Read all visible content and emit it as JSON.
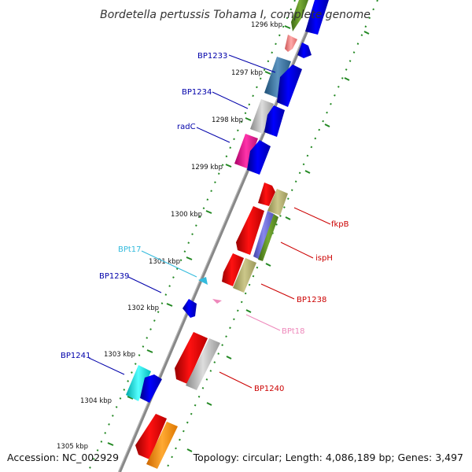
{
  "title": "Bordetella pertussis Tohama I, complete genome",
  "accession": "Accession: NC_002929",
  "summary": "Topology: circular; Length: 4,086,189 bp; Genes: 3,497",
  "ticks": [
    "1296 kbp",
    "1297 kbp",
    "1298 kbp",
    "1299 kbp",
    "1300 kbp",
    "1301 kbp",
    "1302 kbp",
    "1303 kbp",
    "1304 kbp",
    "1305 kbp"
  ],
  "labels": {
    "bp1233": "BP1233",
    "bp1234": "BP1234",
    "radc": "radC",
    "fkpb": "fkpB",
    "isph": "ispH",
    "bpt17": "BPt17",
    "bp1239": "BP1239",
    "bp1238": "BP1238",
    "bpt18": "BPt18",
    "bp1241": "BP1241",
    "bp1240": "BP1240"
  },
  "colors": {
    "forward_label": "#0000aa",
    "reverse_label": "#cc0000",
    "trna_forward": "#33bbdd",
    "trna_reverse": "#ee88bb",
    "backbone": "#888888",
    "tick_dots": "#228822"
  }
}
